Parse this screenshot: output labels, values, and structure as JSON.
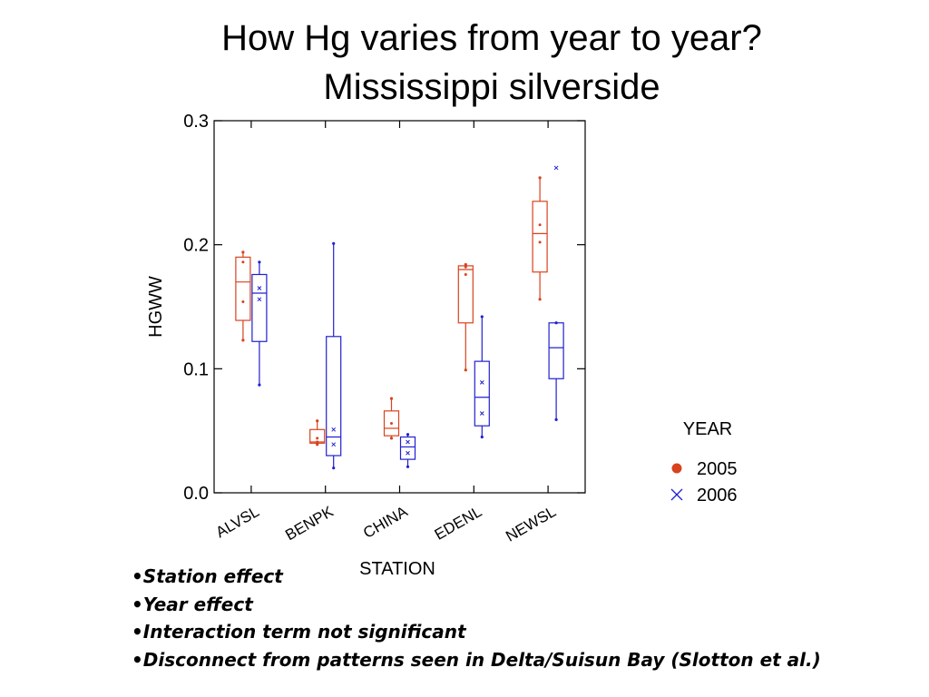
{
  "slide": {
    "title_line1": "How Hg varies from year to year?",
    "title_line2": "Mississippi silverside",
    "bullet_char": "•",
    "bullets": [
      "Station effect",
      "Year effect",
      "Interaction term not significant",
      "Disconnect from patterns seen in Delta/Suisun Bay (Slotton et al.)"
    ]
  },
  "chart_data": {
    "type": "box",
    "xlabel": "STATION",
    "ylabel": "HGWW",
    "ylim": [
      0.0,
      0.3
    ],
    "yticks": [
      0.0,
      0.1,
      0.2,
      0.3
    ],
    "ytick_labels": [
      "0.0",
      "0.1",
      "0.2",
      "0.3"
    ],
    "categories": [
      "ALVSL",
      "BENPK",
      "CHINA",
      "EDENL",
      "NEWSL"
    ],
    "legend": {
      "title": "YEAR",
      "placement": "right"
    },
    "series": [
      {
        "name": "2005",
        "color": "#d9421c",
        "marker": "dot",
        "boxes": [
          {
            "min": 0.123,
            "q1": 0.139,
            "median": 0.17,
            "q3": 0.19,
            "max": 0.194,
            "points": [
              0.154,
              0.186
            ]
          },
          {
            "min": 0.039,
            "q1": 0.04,
            "median": 0.041,
            "q3": 0.051,
            "max": 0.058,
            "points": [
              0.044,
              0.041
            ]
          },
          {
            "min": 0.044,
            "q1": 0.046,
            "median": 0.052,
            "q3": 0.066,
            "max": 0.076,
            "points": [
              0.056
            ]
          },
          {
            "min": 0.099,
            "q1": 0.137,
            "median": 0.18,
            "q3": 0.183,
            "max": 0.184,
            "points": [
              0.176,
              0.182
            ]
          },
          {
            "min": 0.156,
            "q1": 0.178,
            "median": 0.209,
            "q3": 0.235,
            "max": 0.254,
            "points": [
              0.202,
              0.216
            ]
          }
        ]
      },
      {
        "name": "2006",
        "color": "#2020d0",
        "marker": "x",
        "boxes": [
          {
            "min": 0.087,
            "q1": 0.122,
            "median": 0.161,
            "q3": 0.176,
            "max": 0.186,
            "points": [
              0.156,
              0.165
            ]
          },
          {
            "min": 0.02,
            "q1": 0.03,
            "median": 0.045,
            "q3": 0.126,
            "max": 0.201,
            "points": [
              0.039,
              0.051
            ]
          },
          {
            "min": 0.021,
            "q1": 0.027,
            "median": 0.037,
            "q3": 0.045,
            "max": 0.047,
            "points": [
              0.032,
              0.041
            ]
          },
          {
            "min": 0.045,
            "q1": 0.054,
            "median": 0.077,
            "q3": 0.106,
            "max": 0.142,
            "points": [
              0.064,
              0.089
            ]
          },
          {
            "min": 0.059,
            "q1": 0.092,
            "median": 0.117,
            "q3": 0.137,
            "max": 0.137,
            "points": [
              0.262
            ]
          }
        ]
      }
    ]
  }
}
